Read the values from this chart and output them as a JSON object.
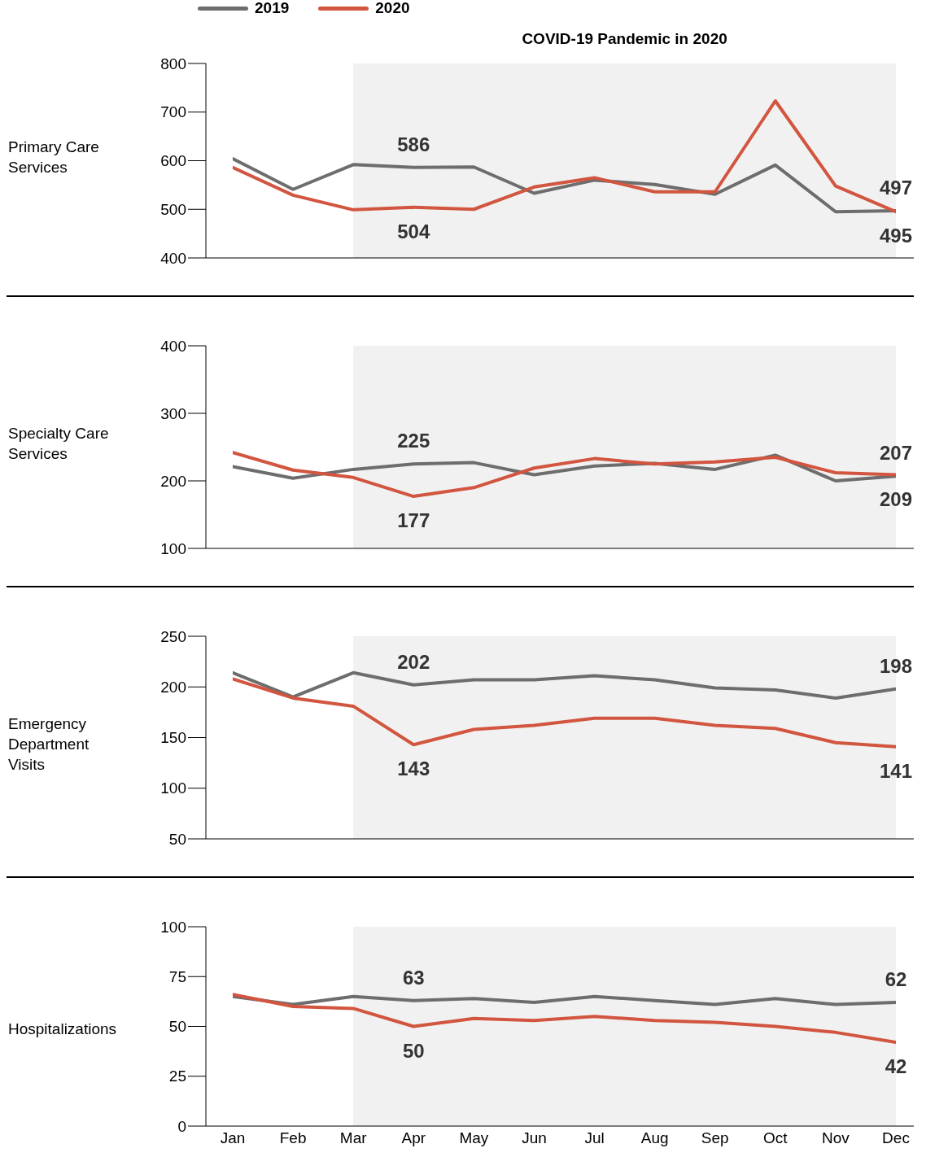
{
  "chart_data": [
    {
      "type": "line",
      "ylabel": "Primary Care Services",
      "categories": [
        "Jan",
        "Feb",
        "Mar",
        "Apr",
        "May",
        "Jun",
        "Jul",
        "Aug",
        "Sep",
        "Oct",
        "Nov",
        "Dec"
      ],
      "ylim": [
        400,
        800
      ],
      "yticks": [
        400,
        500,
        600,
        700,
        800
      ],
      "tick_labels": "y",
      "legend": "top left",
      "bands": [
        {
          "axis": "x",
          "from": "Mar",
          "to": "Dec",
          "label": "COVID-19 Pandemic in 2020",
          "color": "#f1f1f1"
        }
      ],
      "series": [
        {
          "name": "2019",
          "color": "#6d6d6e",
          "values": [
            604,
            541,
            592,
            586,
            587,
            533,
            560,
            551,
            531,
            591,
            495,
            497
          ],
          "value_labels": [
            null,
            null,
            null,
            "586",
            null,
            null,
            null,
            null,
            null,
            null,
            null,
            "497"
          ]
        },
        {
          "name": "2020",
          "color": "#d2553f",
          "values": [
            586,
            529,
            499,
            504,
            500,
            546,
            565,
            536,
            536,
            723,
            548,
            495
          ],
          "value_labels": [
            null,
            null,
            null,
            "504",
            null,
            null,
            null,
            null,
            null,
            null,
            null,
            "495"
          ]
        }
      ]
    },
    {
      "type": "line",
      "ylabel": "Specialty Care Services",
      "categories": [
        "Jan",
        "Feb",
        "Mar",
        "Apr",
        "May",
        "Jun",
        "Jul",
        "Aug",
        "Sep",
        "Oct",
        "Nov",
        "Dec"
      ],
      "ylim": [
        100,
        400
      ],
      "yticks": [
        100,
        200,
        300,
        400
      ],
      "tick_labels": "y",
      "bands": [
        {
          "axis": "x",
          "from": "Mar",
          "to": "Dec",
          "color": "#f1f1f1"
        }
      ],
      "series": [
        {
          "color": "#6d6d6e",
          "values": [
            221,
            204,
            217,
            225,
            227,
            209,
            222,
            226,
            217,
            238,
            200,
            207
          ],
          "value_labels": [
            null,
            null,
            null,
            "225",
            null,
            null,
            null,
            null,
            null,
            null,
            null,
            "207"
          ]
        },
        {
          "color": "#d2553f",
          "values": [
            242,
            216,
            205,
            177,
            190,
            219,
            233,
            225,
            228,
            235,
            212,
            209
          ],
          "value_labels": [
            null,
            null,
            null,
            "177",
            null,
            null,
            null,
            null,
            null,
            null,
            null,
            "209"
          ]
        }
      ]
    },
    {
      "type": "line",
      "ylabel": "Emergency Department Visits",
      "categories": [
        "Jan",
        "Feb",
        "Mar",
        "Apr",
        "May",
        "Jun",
        "Jul",
        "Aug",
        "Sep",
        "Oct",
        "Nov",
        "Dec"
      ],
      "ylim": [
        50,
        250
      ],
      "yticks": [
        50,
        100,
        150,
        200,
        250
      ],
      "tick_labels": "y",
      "bands": [
        {
          "axis": "x",
          "from": "Mar",
          "to": "Dec",
          "color": "#f1f1f1"
        }
      ],
      "series": [
        {
          "color": "#6d6d6e",
          "values": [
            214,
            190,
            214,
            202,
            207,
            207,
            211,
            207,
            199,
            197,
            189,
            198
          ],
          "value_labels": [
            null,
            null,
            null,
            "202",
            null,
            null,
            null,
            null,
            null,
            null,
            null,
            "198"
          ]
        },
        {
          "color": "#d2553f",
          "values": [
            208,
            189,
            181,
            143,
            158,
            162,
            169,
            169,
            162,
            159,
            145,
            141
          ],
          "value_labels": [
            null,
            null,
            null,
            "143",
            null,
            null,
            null,
            null,
            null,
            null,
            null,
            "141"
          ]
        }
      ]
    },
    {
      "type": "line",
      "ylabel": "Hospitalizations",
      "categories": [
        "Jan",
        "Feb",
        "Mar",
        "Apr",
        "May",
        "Jun",
        "Jul",
        "Aug",
        "Sep",
        "Oct",
        "Nov",
        "Dec"
      ],
      "ylim": [
        0,
        100
      ],
      "yticks": [
        0,
        25,
        50,
        75,
        100
      ],
      "bands": [
        {
          "axis": "x",
          "from": "Mar",
          "to": "Dec",
          "color": "#f1f1f1"
        }
      ],
      "series": [
        {
          "color": "#6d6d6e",
          "values": [
            65,
            61,
            65,
            63,
            64,
            62,
            65,
            63,
            61,
            64,
            61,
            62
          ],
          "value_labels": [
            null,
            null,
            null,
            "63",
            null,
            null,
            null,
            null,
            null,
            null,
            null,
            "62"
          ]
        },
        {
          "color": "#d2553f",
          "values": [
            66,
            60,
            59,
            50,
            54,
            53,
            55,
            53,
            52,
            50,
            47,
            42
          ],
          "value_labels": [
            null,
            null,
            null,
            "50",
            null,
            null,
            null,
            null,
            null,
            null,
            null,
            "42"
          ]
        }
      ]
    }
  ]
}
